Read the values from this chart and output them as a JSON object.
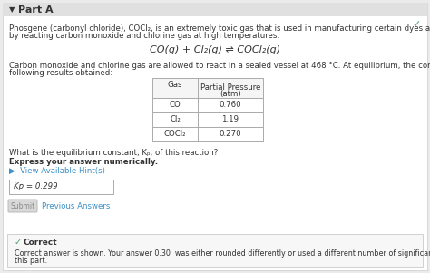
{
  "bg_color": "#ebebeb",
  "panel_color": "#ffffff",
  "header_color": "#e0e0e0",
  "correct_bg": "#f7f7f7",
  "correct_border": "#d0d0d0",
  "part_a_text": "Part A",
  "checkmark_color": "#4d9e6f",
  "intro_line1": "Phosgene (carbonyl chloride), COCl₂, is an extremely toxic gas that is used in manufacturing certain dyes and plastics. Phosgene can be produced",
  "intro_line2": "by reacting carbon monoxide and chlorine gas at high temperatures:",
  "equation": "CO(g) + Cl₂(g) ⇌ COCl₂(g)",
  "body_line1": "Carbon monoxide and chlorine gas are allowed to react in a sealed vessel at 468 °C. At equilibrium, the concentrations were measured and the",
  "body_line2": "following results obtained:",
  "table_header_gas": "Gas",
  "table_header_pp": "Partial Pressure",
  "table_header_atm": "(atm)",
  "table_rows": [
    [
      "CO",
      "0.760"
    ],
    [
      "Cl₂",
      "1.19"
    ],
    [
      "COCl₂",
      "0.270"
    ]
  ],
  "question_text": "What is the equilibrium constant, Kₚ, of this reaction?",
  "bold_text": "Express your answer numerically.",
  "hint_text": "▶  View Available Hint(s)",
  "hint_color": "#3b8fc7",
  "answer_box_text": "Kp = 0.299",
  "submit_text": "Submit",
  "prev_text": "Previous Answers",
  "correct_title": "Correct",
  "correct_body1": "Correct answer is shown. Your answer 0.30  was either rounded differently or used a different number of significant figures than required for",
  "correct_body2": "this part.",
  "text_color": "#333333",
  "gray_text": "#888888",
  "table_border": "#aaaaaa",
  "font_small": 6.2,
  "font_body": 6.5,
  "font_title": 8.0
}
